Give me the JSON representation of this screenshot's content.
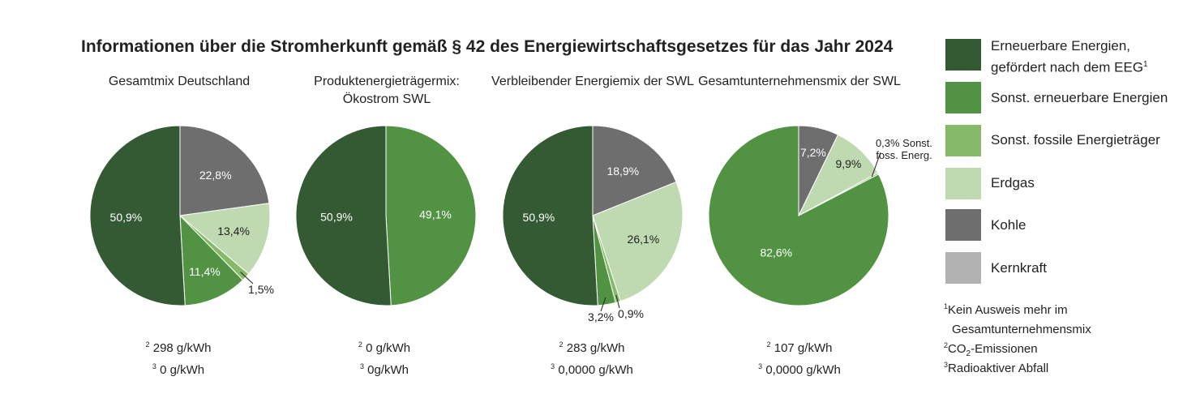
{
  "title": "Informationen über die Stromherkunft gemäß § 42 des Energiewirtschaftsgesetzes für das Jahr 2024",
  "colors": {
    "erneuerbar_eeg": "#335a33",
    "sonst_erneuerbar": "#529343",
    "sonst_fossil": "#86b968",
    "erdgas": "#bfd9b0",
    "kohle": "#6f6e6f",
    "kernkraft": "#b2b2b2"
  },
  "legend": [
    {
      "key": "erneuerbar_eeg",
      "label_line1": "Erneuerbare Energien,",
      "label_line2": "gefördert nach dem EEG",
      "sup": "1"
    },
    {
      "key": "sonst_erneuerbar",
      "label_line1": "Sonst. erneuerbare Energien"
    },
    {
      "key": "sonst_fossil",
      "label_line1": "Sonst. fossile Energieträger"
    },
    {
      "key": "erdgas",
      "label_line1": "Erdgas"
    },
    {
      "key": "kohle",
      "label_line1": "Kohle"
    },
    {
      "key": "kernkraft",
      "label_line1": "Kernkraft"
    }
  ],
  "footnotes": [
    {
      "sup": "1",
      "line1": "Kein Ausweis mehr im",
      "line2": "Gesamtunternehmensmix"
    },
    {
      "sup": "2",
      "pre": "CO",
      "sub": "2",
      "post": "-Emissionen"
    },
    {
      "sup": "3",
      "line1": "Radioaktiver Abfall"
    }
  ],
  "chart_data": [
    {
      "type": "pie",
      "title": "Gesamtmix Deutschland",
      "slices": [
        {
          "category": "Kohle",
          "value": 22.8,
          "label": "22,8%"
        },
        {
          "category": "Erdgas",
          "value": 13.4,
          "label": "13,4%"
        },
        {
          "category": "Sonst. fossile Energieträger",
          "value": 1.5,
          "label": "1,5%"
        },
        {
          "category": "Sonst. erneuerbare Energien",
          "value": 11.4,
          "label": "11,4%"
        },
        {
          "category": "Erneuerbare Energien, gefördert nach dem EEG",
          "value": 50.9,
          "label": "50,9%"
        }
      ],
      "co2": "298 g/kWh",
      "waste": "0 g/kWh"
    },
    {
      "type": "pie",
      "title_line1": "Produktenergieträgermix:",
      "title_line2": "Ökostrom SWL",
      "slices": [
        {
          "category": "Sonst. erneuerbare Energien",
          "value": 49.1,
          "label": "49,1%"
        },
        {
          "category": "Erneuerbare Energien, gefördert nach dem EEG",
          "value": 50.9,
          "label": "50,9%"
        }
      ],
      "co2": "0 g/kWh",
      "waste": "0g/kWh"
    },
    {
      "type": "pie",
      "title": "Verbleibender Energiemix der SWL",
      "slices": [
        {
          "category": "Kohle",
          "value": 18.9,
          "label": "18,9%"
        },
        {
          "category": "Erdgas",
          "value": 26.1,
          "label": "26,1%"
        },
        {
          "category": "Sonst. fossile Energieträger",
          "value": 0.9,
          "label": "0,9%"
        },
        {
          "category": "Sonst. erneuerbare Energien",
          "value": 3.2,
          "label": "3,2%"
        },
        {
          "category": "Erneuerbare Energien, gefördert nach dem EEG",
          "value": 50.9,
          "label": "50,9%"
        }
      ],
      "co2": "283 g/kWh",
      "waste": "0,0000 g/kWh"
    },
    {
      "type": "pie",
      "title": "Gesamtunternehmensmix der SWL",
      "slices": [
        {
          "category": "Kohle",
          "value": 7.2,
          "label": "7,2%"
        },
        {
          "category": "Erdgas",
          "value": 9.9,
          "label": "9,9%"
        },
        {
          "category": "Sonst. fossile Energieträger",
          "value": 0.3,
          "label_line1": "0,3% Sonst.",
          "label_line2": "foss. Energ."
        },
        {
          "category": "Sonst. erneuerbare Energien",
          "value": 82.6,
          "label": "82,6%"
        }
      ],
      "co2": "107 g/kWh",
      "waste": "0,0000 g/kWh"
    }
  ]
}
